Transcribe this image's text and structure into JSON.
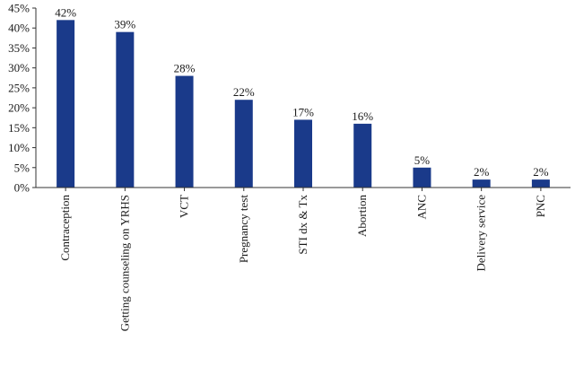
{
  "chart_data": {
    "type": "bar",
    "title": "",
    "xlabel": "",
    "ylabel": "",
    "categories": [
      "Contraception",
      "Getting counseling on YRHS",
      "VCT",
      "Pregnancy test",
      "STI dx & Tx",
      "Abortion",
      "ANC",
      "Delivery service",
      "PNC"
    ],
    "values": [
      42,
      39,
      28,
      22,
      17,
      16,
      5,
      2,
      2
    ],
    "data_labels": [
      "42%",
      "39%",
      "28%",
      "22%",
      "17%",
      "16%",
      "5%",
      "2%",
      "2%"
    ],
    "ylim": [
      0,
      45
    ],
    "yticks": [
      0,
      5,
      10,
      15,
      20,
      25,
      30,
      35,
      40,
      45
    ],
    "ytick_labels": [
      "0%",
      "5%",
      "10%",
      "15%",
      "20%",
      "25%",
      "30%",
      "35%",
      "40%",
      "45%"
    ],
    "grid": false,
    "legend": "none",
    "bar_color": "#1a3a8a"
  }
}
